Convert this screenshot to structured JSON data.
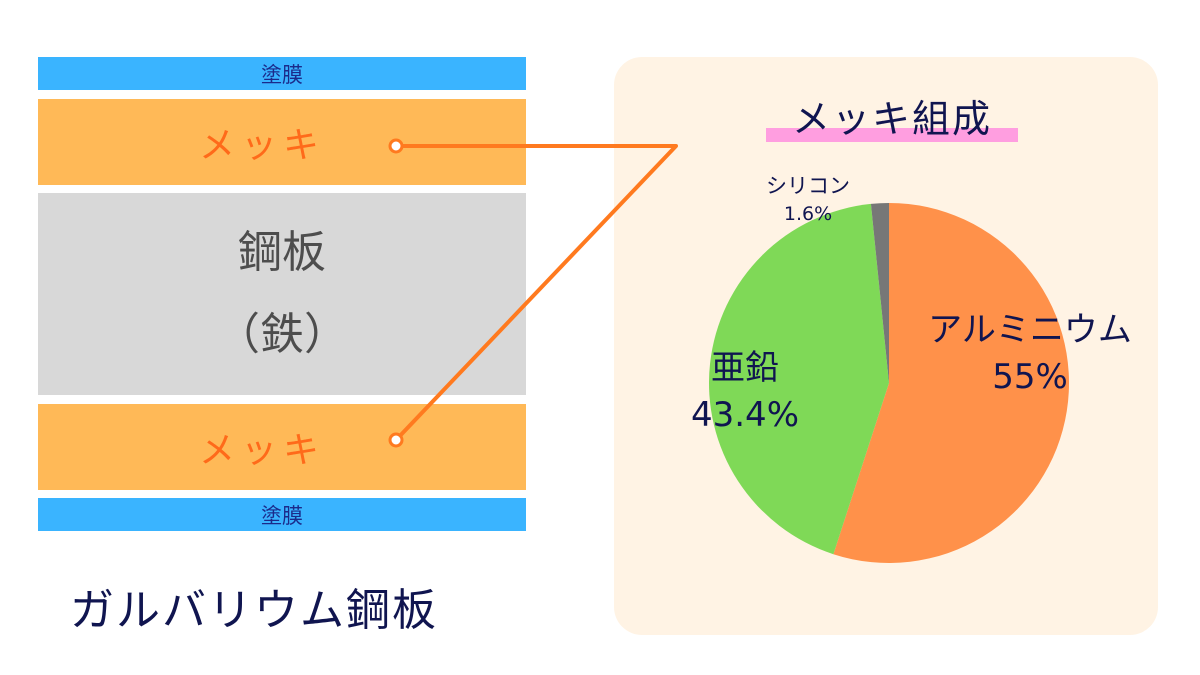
{
  "layers": {
    "top_coating": "塗膜",
    "top_plating": "メッキ",
    "steel_line1": "鋼板",
    "steel_line2": "（鉄）",
    "bottom_plating": "メッキ",
    "bottom_coating": "塗膜"
  },
  "product_name": "ガルバリウム鋼板",
  "colors": {
    "coating": "#3ab4ff",
    "plating": "#ffb957",
    "steel": "#d8d8d8",
    "connector": "#ff7a1f",
    "aluminium": "#ff914a",
    "zinc": "#7fd957",
    "silicon": "#777777"
  },
  "chart_data": {
    "type": "pie",
    "title": "メッキ組成",
    "slices": [
      {
        "name": "アルミニウム",
        "value": 55,
        "label": "55%"
      },
      {
        "name": "亜鉛",
        "value": 43.4,
        "label": "43.4%"
      },
      {
        "name": "シリコン",
        "value": 1.6,
        "label": "1.6%"
      }
    ]
  }
}
